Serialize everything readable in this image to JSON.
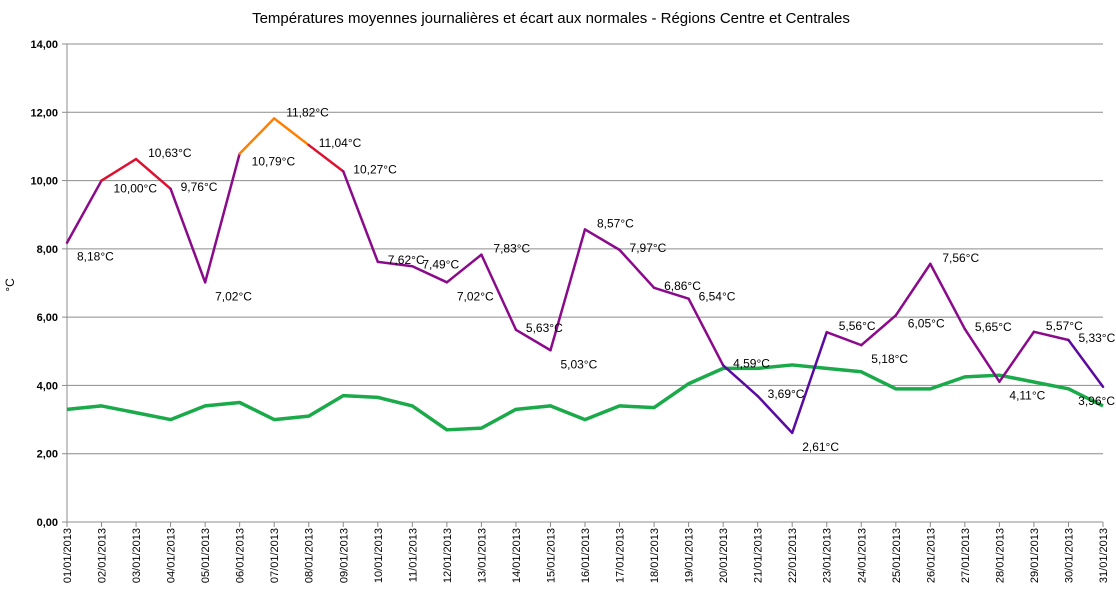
{
  "chart_data": {
    "type": "line",
    "title": "Températures moyennes journalières et écart aux normales - Régions Centre et Centrales",
    "ylabel": "°C",
    "xlabel": "",
    "ylim": [
      0,
      14
    ],
    "yticks": [
      "0,00",
      "2,00",
      "4,00",
      "6,00",
      "8,00",
      "10,00",
      "12,00",
      "14,00"
    ],
    "grid": true,
    "categories": [
      "01/01/2013",
      "02/01/2013",
      "03/01/2013",
      "04/01/2013",
      "05/01/2013",
      "06/01/2013",
      "07/01/2013",
      "08/01/2013",
      "09/01/2013",
      "10/01/2013",
      "11/01/2013",
      "12/01/2013",
      "13/01/2013",
      "14/01/2013",
      "15/01/2013",
      "16/01/2013",
      "17/01/2013",
      "18/01/2013",
      "19/01/2013",
      "20/01/2013",
      "21/01/2013",
      "22/01/2013",
      "23/01/2013",
      "24/01/2013",
      "25/01/2013",
      "26/01/2013",
      "27/01/2013",
      "28/01/2013",
      "29/01/2013",
      "30/01/2013",
      "31/01/2013"
    ],
    "series": [
      {
        "role": "temperature",
        "values": [
          8.18,
          10.0,
          10.63,
          9.76,
          7.02,
          10.79,
          11.82,
          11.04,
          10.27,
          7.62,
          7.49,
          7.02,
          7.83,
          5.63,
          5.03,
          8.57,
          7.97,
          6.86,
          6.54,
          4.59,
          3.69,
          2.61,
          5.56,
          5.18,
          6.05,
          7.56,
          5.65,
          4.11,
          5.57,
          5.33,
          3.96
        ],
        "labels": [
          "8,18°C",
          "10,00°C",
          "10,63°C",
          "9,76°C",
          "7,02°C",
          "10,79°C",
          "11,82°C",
          "11,04°C",
          "10,27°C",
          "7,62°C",
          "7,49°C",
          "7,02°C",
          "7,83°C",
          "5,63°C",
          "5,03°C",
          "8,57°C",
          "7,97°C",
          "6,86°C",
          "6,54°C",
          "4,59°C",
          "3,69°C",
          "2,61°C",
          "5,56°C",
          "5,18°C",
          "6,05°C",
          "7,56°C",
          "5,65°C",
          "4,11°C",
          "5,57°C",
          "5,33°C",
          "3,96°C"
        ]
      },
      {
        "role": "normal",
        "color": "#1aaa4a",
        "values": [
          3.3,
          3.4,
          3.2,
          3.0,
          3.4,
          3.5,
          3.0,
          3.1,
          3.7,
          3.65,
          3.4,
          2.7,
          2.75,
          3.3,
          3.4,
          3.0,
          3.4,
          3.35,
          4.05,
          4.5,
          4.5,
          4.6,
          4.5,
          4.4,
          3.9,
          3.9,
          4.25,
          4.3,
          4.1,
          3.9,
          3.4
        ]
      }
    ],
    "temperature_colors": {
      "high": "#ff8000",
      "warm": "#dd1030",
      "mild": "#8b0a8b",
      "cool": "#5a0aa0"
    }
  }
}
